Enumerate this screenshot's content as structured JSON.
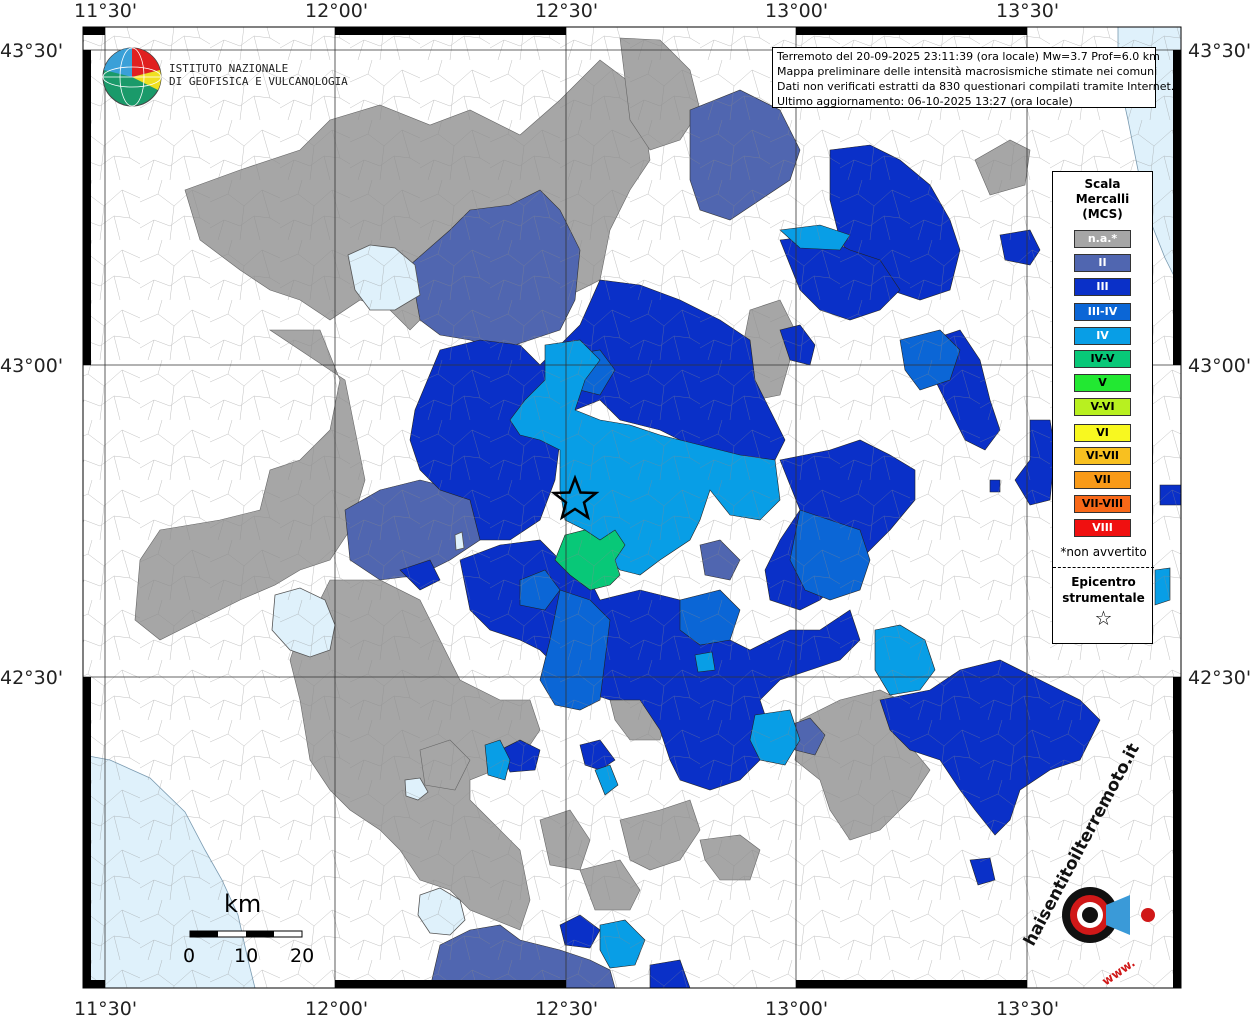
{
  "map": {
    "axis_labels": {
      "longitudes": [
        "11°30'",
        "12°00'",
        "12°30'",
        "13°00'",
        "13°30'"
      ],
      "latitudes": [
        "43°30'",
        "43°00'",
        "42°30'"
      ]
    },
    "colors": {
      "na": "#a6a6a6",
      "II": "#5066b0",
      "III": "#0a30c8",
      "III-IV": "#0b66d6",
      "IV": "#089ee6",
      "IV-V": "#08c878",
      "water": "#dff1fb",
      "outside": "#ffffff"
    }
  },
  "logo": {
    "line1": "ISTITUTO NAZIONALE",
    "line2": "DI GEOFISICA E VULCANOLOGIA"
  },
  "info": {
    "line1": "Terremoto del 20-09-2025 23:11:39 (ora locale) Mw=3.7 Prof=6.0 km",
    "line2": "Mappa preliminare delle intensità macrosismiche stimate nei comuni",
    "line3": "Dati non verificati estratti da 830 questionari compilati tramite Internet.",
    "line4": "Ultimo aggiornamento: 06-10-2025 13:27 (ora locale)"
  },
  "legend": {
    "title1": "Scala",
    "title2": "Mercalli",
    "title3": "(MCS)",
    "items": [
      {
        "label": "n.a.*",
        "color": "#a6a6a6",
        "text": "#ffffff"
      },
      {
        "label": "II",
        "color": "#5066b0",
        "text": "#ffffff"
      },
      {
        "label": "III",
        "color": "#0a30c8",
        "text": "#ffffff"
      },
      {
        "label": "III-IV",
        "color": "#0b66d6",
        "text": "#ffffff"
      },
      {
        "label": "IV",
        "color": "#089ee6",
        "text": "#ffffff"
      },
      {
        "label": "IV-V",
        "color": "#08c878",
        "text": "#000000"
      },
      {
        "label": "V",
        "color": "#22e832",
        "text": "#000000"
      },
      {
        "label": "V-VI",
        "color": "#b8f020",
        "text": "#000000"
      },
      {
        "label": "VI",
        "color": "#f8f820",
        "text": "#000000"
      },
      {
        "label": "VI-VII",
        "color": "#f8c020",
        "text": "#000000"
      },
      {
        "label": "VII",
        "color": "#f89a18",
        "text": "#000000"
      },
      {
        "label": "VII-VIII",
        "color": "#f86818",
        "text": "#000000"
      },
      {
        "label": "VIII",
        "color": "#f01010",
        "text": "#ffffff"
      }
    ],
    "note": "*non avvertito",
    "epicentre1": "Epicentro",
    "epicentre2": "strumentale"
  },
  "scale_bar": {
    "unit": "km",
    "ticks": [
      "0",
      "10",
      "20"
    ]
  },
  "hst_logo": {
    "text": "haisentitoilterremoto.it",
    "url": "www."
  }
}
